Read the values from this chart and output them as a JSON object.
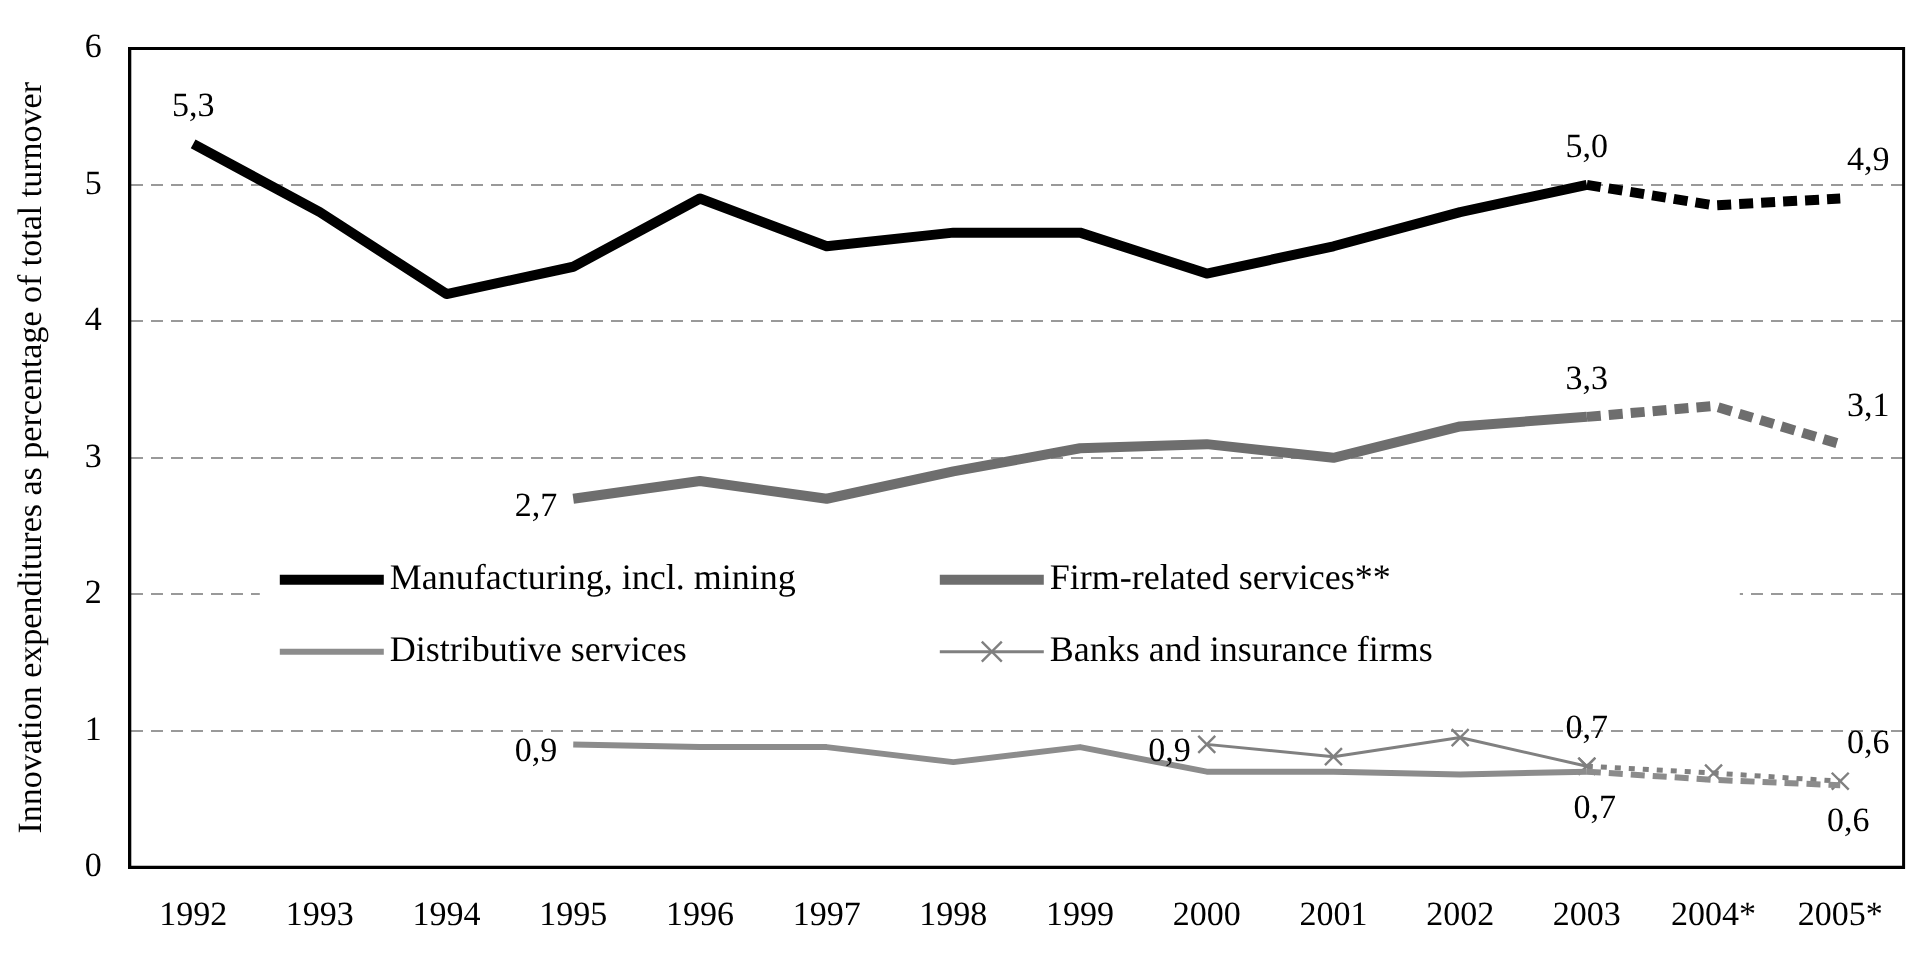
{
  "chart_data": {
    "type": "line",
    "ylabel": "Innovation expenditures as percentage of total turnover",
    "categories": [
      "1992",
      "1993",
      "1994",
      "1995",
      "1996",
      "1997",
      "1998",
      "1999",
      "2000",
      "2001",
      "2002",
      "2003",
      "2004*",
      "2005*"
    ],
    "ylim": [
      0,
      6
    ],
    "yticks": [
      0,
      1,
      2,
      3,
      4,
      5,
      6
    ],
    "grid": "y",
    "legend": "left",
    "series": [
      {
        "name": "Manufacturing, incl. mining",
        "color": "#000000",
        "line_style": "solid",
        "marker": "none",
        "values": [
          5.3,
          4.8,
          4.2,
          4.4,
          4.9,
          4.55,
          4.65,
          4.65,
          4.35,
          4.55,
          4.8,
          5.0,
          null,
          null
        ],
        "value_labels": [
          "5,3",
          null,
          null,
          null,
          null,
          null,
          null,
          null,
          null,
          null,
          null,
          "5,0",
          null,
          null
        ]
      },
      {
        "color": "#000000",
        "line_style": "dashed",
        "marker": "none",
        "values": [
          null,
          null,
          null,
          null,
          null,
          null,
          null,
          null,
          null,
          null,
          null,
          5.0,
          4.85,
          4.9
        ],
        "value_labels": [
          null,
          null,
          null,
          null,
          null,
          null,
          null,
          null,
          null,
          null,
          null,
          null,
          null,
          "4,9"
        ]
      },
      {
        "name": "Firm-related services**",
        "color": "#6e6e6e",
        "line_style": "solid",
        "marker": "none",
        "values": [
          null,
          null,
          null,
          2.7,
          2.83,
          2.7,
          2.9,
          3.07,
          3.1,
          3.0,
          3.23,
          3.3,
          null,
          null
        ],
        "value_labels": [
          null,
          null,
          null,
          "2,7",
          null,
          null,
          null,
          null,
          null,
          null,
          null,
          "3,3",
          null,
          null
        ]
      },
      {
        "color": "#6e6e6e",
        "line_style": "dashed",
        "marker": "none",
        "values": [
          null,
          null,
          null,
          null,
          null,
          null,
          null,
          null,
          null,
          null,
          null,
          3.3,
          3.38,
          3.1
        ],
        "value_labels": [
          null,
          null,
          null,
          null,
          null,
          null,
          null,
          null,
          null,
          null,
          null,
          null,
          null,
          "3,1"
        ]
      },
      {
        "name": "Distributive services",
        "color": "#8c8c8c",
        "line_style": "solid",
        "marker": "none",
        "values": [
          null,
          null,
          null,
          0.9,
          0.88,
          0.88,
          0.77,
          0.88,
          0.7,
          0.7,
          0.68,
          0.7,
          null,
          null
        ],
        "value_labels": [
          null,
          null,
          null,
          "0,9",
          null,
          null,
          null,
          null,
          null,
          null,
          null,
          "0,7",
          null,
          null
        ]
      },
      {
        "color": "#8c8c8c",
        "line_style": "dashed",
        "marker": "none",
        "values": [
          null,
          null,
          null,
          null,
          null,
          null,
          null,
          null,
          null,
          null,
          null,
          0.7,
          0.64,
          0.6
        ],
        "value_labels": [
          null,
          null,
          null,
          null,
          null,
          null,
          null,
          null,
          null,
          null,
          null,
          null,
          null,
          "0,6"
        ]
      },
      {
        "name": "Banks and insurance firms",
        "color": "#808080",
        "line_style": "solid",
        "marker": "cross",
        "values": [
          null,
          null,
          null,
          null,
          null,
          null,
          null,
          null,
          0.9,
          0.81,
          0.95,
          0.74,
          null,
          null
        ],
        "value_labels": [
          null,
          null,
          null,
          null,
          null,
          null,
          null,
          null,
          "0,9",
          null,
          null,
          "0,7",
          null,
          null
        ]
      },
      {
        "color": "#808080",
        "line_style": "dotted",
        "marker": "cross",
        "values": [
          null,
          null,
          null,
          null,
          null,
          null,
          null,
          null,
          null,
          null,
          null,
          0.74,
          0.69,
          0.63
        ],
        "value_labels": [
          null,
          null,
          null,
          null,
          null,
          null,
          null,
          null,
          null,
          null,
          null,
          null,
          null,
          "0,6"
        ]
      }
    ]
  }
}
